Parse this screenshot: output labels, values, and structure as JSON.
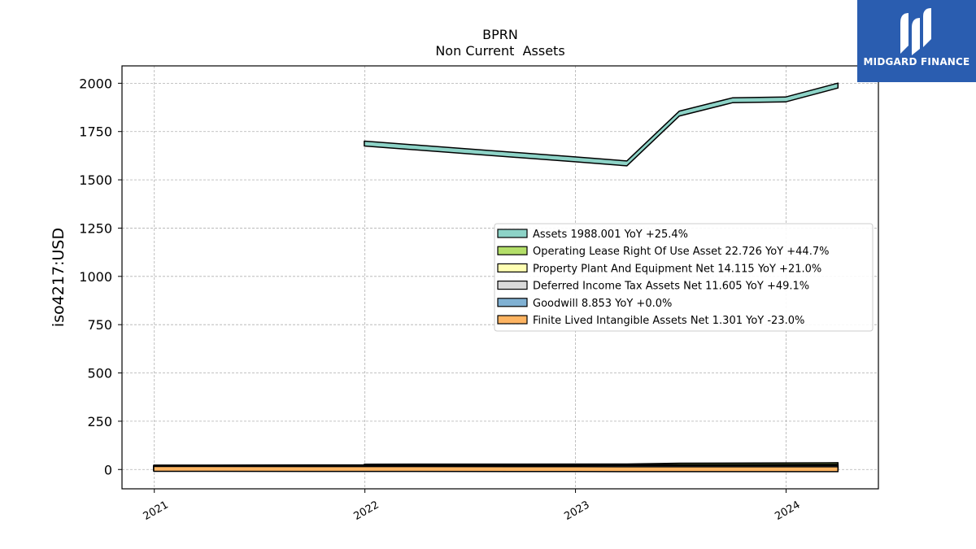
{
  "chart_data": {
    "type": "area",
    "title": "BPRN",
    "subtitle": "Non Current  Assets",
    "ylabel": "iso4217:USD",
    "xlabel": "",
    "x_ticks": [
      "2021",
      "2022",
      "2023",
      "2024"
    ],
    "y_ticks": [
      0,
      250,
      500,
      750,
      1000,
      1250,
      1500,
      1750,
      2000
    ],
    "ylim": [
      -100,
      2090
    ],
    "xlim": [
      "2020-11-06",
      "2024-06-09"
    ],
    "grid": true,
    "legend_position": "center-right",
    "series": [
      {
        "name": "Assets",
        "legend": "Assets  1988.001 YoY +25.4%",
        "color": "#8dd3c7",
        "x": [
          "2021-12-31",
          "2022-12-31",
          "2023-03-31",
          "2023-06-30",
          "2023-09-30",
          "2023-12-31",
          "2024-03-31"
        ],
        "y": [
          1688,
          1606,
          1585,
          1843,
          1912,
          1916,
          1988.001
        ]
      },
      {
        "name": "Operating Lease Right Of Use Asset",
        "legend": "Operating Lease Right Of Use Asset  22.726 YoY +44.7%",
        "color": "#b3de69",
        "x": [
          "2021-12-31",
          "2023-03-31",
          "2023-06-30",
          "2024-03-31"
        ],
        "y": [
          15,
          15.7,
          20,
          22.726
        ]
      },
      {
        "name": "Property Plant And Equipment Net",
        "legend": "Property Plant And Equipment Net  14.115 YoY +21.0%",
        "color": "#ffffb3",
        "x": [
          "2020-12-31",
          "2021-12-31",
          "2023-03-31",
          "2023-06-30",
          "2024-03-31"
        ],
        "y": [
          10,
          11,
          11.7,
          13,
          14.115
        ]
      },
      {
        "name": "Deferred Income Tax Assets Net",
        "legend": "Deferred Income Tax Assets Net  11.605 YoY +49.1%",
        "color": "#d9d9d9",
        "x": [
          "2020-12-31",
          "2021-12-31",
          "2023-03-31",
          "2024-03-31"
        ],
        "y": [
          7,
          7.8,
          7.8,
          11.605
        ]
      },
      {
        "name": "Goodwill",
        "legend": "Goodwill  8.853 YoY +0.0%",
        "color": "#80b1d3",
        "x": [
          "2020-12-31",
          "2024-03-31"
        ],
        "y": [
          8.853,
          8.853
        ]
      },
      {
        "name": "Finite Lived Intangible Assets Net",
        "legend": "Finite Lived Intangible Assets Net  1.301 YoY -23.0%",
        "color": "#fdb462",
        "x": [
          "2020-12-31",
          "2022-12-31",
          "2024-03-31"
        ],
        "y": [
          3,
          2,
          1.301
        ]
      }
    ]
  },
  "logo": {
    "text": "MIDGARD FINANCE",
    "color": "#2a5db0"
  }
}
